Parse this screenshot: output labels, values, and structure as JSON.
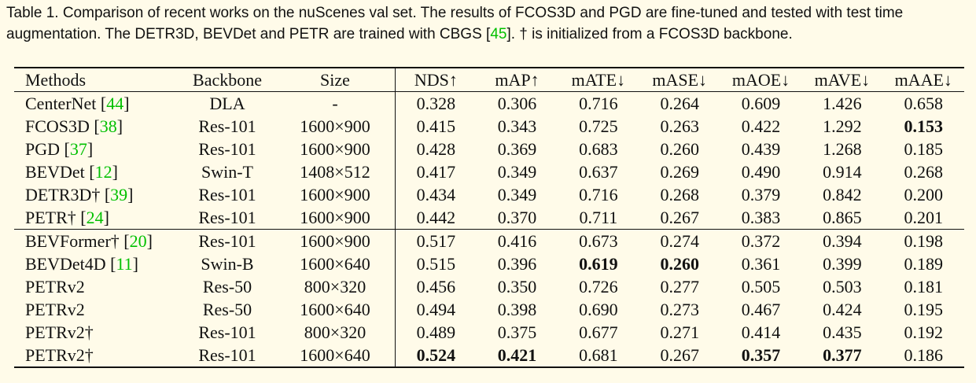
{
  "caption": {
    "part1": "Table 1. Comparison of recent works on the nuScenes val set. The results of FCOS3D and PGD are fine-tuned and tested with test time augmentation. The DETR3D, BEVDet and PETR are trained with CBGS [",
    "cite1": "45",
    "part2": "]. † is initialized from a FCOS3D backbone."
  },
  "headers": [
    "Methods",
    "Backbone",
    "Size",
    "NDS↑",
    "mAP↑",
    "mATE↓",
    "mASE↓",
    "mAOE↓",
    "mAVE↓",
    "mAAE↓"
  ],
  "group1": [
    {
      "method": "CenterNet ",
      "cite": "44",
      "backbone": "DLA",
      "size": "-",
      "values": [
        "0.328",
        "0.306",
        "0.716",
        "0.264",
        "0.609",
        "1.426",
        "0.658"
      ],
      "bold": []
    },
    {
      "method": "FCOS3D ",
      "cite": "38",
      "backbone": "Res-101",
      "size": "1600×900",
      "values": [
        "0.415",
        "0.343",
        "0.725",
        "0.263",
        "0.422",
        "1.292",
        "0.153"
      ],
      "bold": [
        6
      ]
    },
    {
      "method": "PGD ",
      "cite": "37",
      "backbone": "Res-101",
      "size": "1600×900",
      "values": [
        "0.428",
        "0.369",
        "0.683",
        "0.260",
        "0.439",
        "1.268",
        "0.185"
      ],
      "bold": []
    },
    {
      "method": "BEVDet ",
      "cite": "12",
      "backbone": "Swin-T",
      "size": "1408×512",
      "values": [
        "0.417",
        "0.349",
        "0.637",
        "0.269",
        "0.490",
        "0.914",
        "0.268"
      ],
      "bold": []
    },
    {
      "method": "DETR3D† ",
      "cite": "39",
      "backbone": "Res-101",
      "size": "1600×900",
      "values": [
        "0.434",
        "0.349",
        "0.716",
        "0.268",
        "0.379",
        "0.842",
        "0.200"
      ],
      "bold": []
    },
    {
      "method": "PETR† ",
      "cite": "24",
      "backbone": "Res-101",
      "size": "1600×900",
      "values": [
        "0.442",
        "0.370",
        "0.711",
        "0.267",
        "0.383",
        "0.865",
        "0.201"
      ],
      "bold": []
    }
  ],
  "group2": [
    {
      "method": "BEVFormer† ",
      "cite": "20",
      "backbone": "Res-101",
      "size": "1600×900",
      "values": [
        "0.517",
        "0.416",
        "0.673",
        "0.274",
        "0.372",
        "0.394",
        "0.198"
      ],
      "bold": []
    },
    {
      "method": "BEVDet4D ",
      "cite": "11",
      "backbone": "Swin-B",
      "size": "1600×640",
      "values": [
        "0.515",
        "0.396",
        "0.619",
        "0.260",
        "0.361",
        "0.399",
        "0.189"
      ],
      "bold": [
        2,
        3
      ]
    },
    {
      "method": "PETRv2",
      "cite": "",
      "backbone": "Res-50",
      "size": "800×320",
      "values": [
        "0.456",
        "0.350",
        "0.726",
        "0.277",
        "0.505",
        "0.503",
        "0.181"
      ],
      "bold": []
    },
    {
      "method": "PETRv2",
      "cite": "",
      "backbone": "Res-50",
      "size": "1600×640",
      "values": [
        "0.494",
        "0.398",
        "0.690",
        "0.273",
        "0.467",
        "0.424",
        "0.195"
      ],
      "bold": []
    },
    {
      "method": "PETRv2†",
      "cite": "",
      "backbone": "Res-101",
      "size": "800×320",
      "values": [
        "0.489",
        "0.375",
        "0.677",
        "0.271",
        "0.414",
        "0.435",
        "0.192"
      ],
      "bold": []
    },
    {
      "method": "PETRv2†",
      "cite": "",
      "backbone": "Res-101",
      "size": "1600×640",
      "values": [
        "0.524",
        "0.421",
        "0.681",
        "0.267",
        "0.357",
        "0.377",
        "0.186"
      ],
      "bold": [
        0,
        1,
        4,
        5
      ]
    }
  ]
}
